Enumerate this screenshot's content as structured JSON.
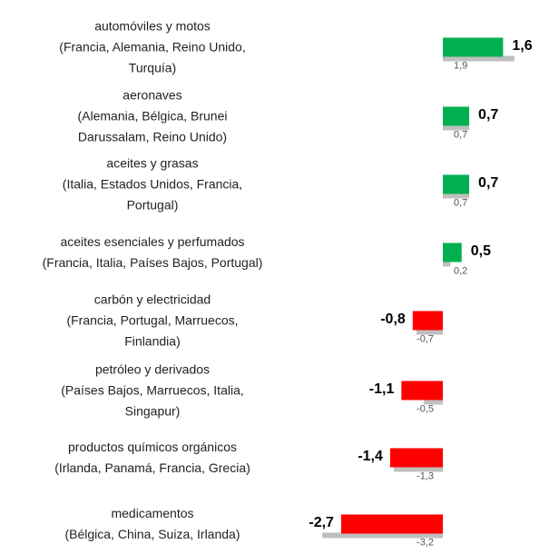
{
  "chart_data": {
    "type": "bar",
    "orientation": "horizontal",
    "categories": [
      [
        "automóviles y motos",
        "(Francia, Alemania, Reino Unido,",
        "Turquía)"
      ],
      [
        "aeronaves",
        "(Alemania, Bélgica, Brunei",
        "Darussalam, Reino Unido)"
      ],
      [
        "aceites y grasas",
        "(Italia, Estados Unidos, Francia,",
        "Portugal)"
      ],
      [
        "aceites esenciales y perfumados",
        "(Francia, Italia, Países Bajos, Portugal)"
      ],
      [
        "carbón y electricidad",
        "(Francia, Portugal, Marruecos,",
        "Finlandia)"
      ],
      [
        "petróleo y derivados",
        "(Países Bajos, Marruecos, Italia,",
        "Singapur)"
      ],
      [
        "productos químicos orgánicos",
        "(Irlanda, Panamá, Francia, Grecia)"
      ],
      [
        "medicamentos",
        "(Bélgica, China, Suiza, Irlanda)"
      ]
    ],
    "series": [
      {
        "values": [
          1.6,
          0.7,
          0.7,
          0.5,
          -0.8,
          -1.1,
          -1.4,
          -2.7
        ],
        "value_labels": [
          "1,6",
          "0,7",
          "0,7",
          "0,5",
          "-0,8",
          "-1,1",
          "-1,4",
          "-2,7"
        ],
        "colors": [
          "#00b050",
          "#00b050",
          "#00b050",
          "#00b050",
          "#ff0000",
          "#ff0000",
          "#ff0000",
          "#ff0000"
        ]
      },
      {
        "values": [
          1.9,
          0.7,
          0.7,
          0.2,
          -0.7,
          -0.5,
          -1.3,
          -3.2
        ],
        "value_labels": [
          "1,9",
          "0,7",
          "0,7",
          "0,2",
          "-0,7",
          "-0,5",
          "-1,3",
          "-3,2"
        ],
        "color": "#bfbfbf"
      }
    ]
  }
}
